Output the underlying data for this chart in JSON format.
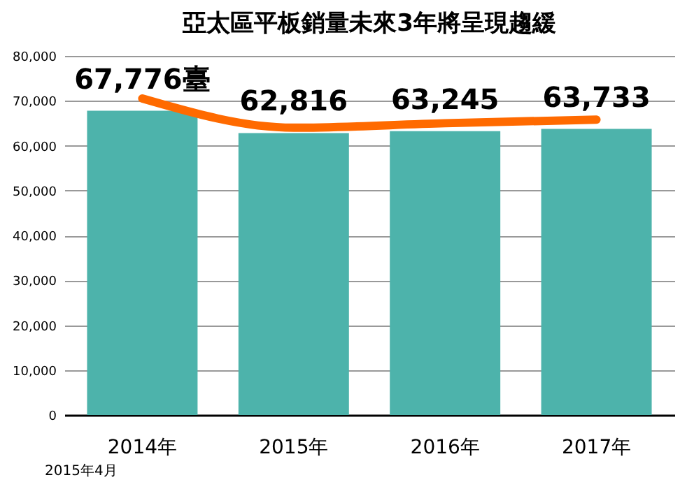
{
  "chart_data": {
    "type": "bar",
    "title": "亞太區平板銷量未來3年將呈現趨緩",
    "categories": [
      "2014年",
      "2015年",
      "2016年",
      "2017年"
    ],
    "series": [
      {
        "color": "#4db3ab",
        "values": [
          67776,
          62816,
          63245,
          63733
        ],
        "value_labels": [
          "67,776臺",
          "62,816",
          "63,245",
          "63,733"
        ]
      },
      {
        "type": "line",
        "color": "#ff6a00",
        "values": [
          70500,
          64000,
          65000,
          65800
        ]
      }
    ],
    "ylim": [
      0,
      80000
    ],
    "yticks": [
      0,
      {
        "value": 10000,
        "label": "10,000"
      },
      {
        "value": 20000,
        "label": "20,000"
      },
      {
        "value": 30000,
        "label": "30,000"
      },
      {
        "value": 40000,
        "label": "40,000"
      },
      {
        "value": 50000,
        "label": "50,000"
      },
      {
        "value": 60000,
        "label": "60,000"
      },
      {
        "value": 70000,
        "label": "70,000"
      },
      {
        "value": 80000,
        "label": "80,000"
      }
    ],
    "grid": "y",
    "legend": false,
    "annotations": [
      "2015年4月"
    ]
  }
}
